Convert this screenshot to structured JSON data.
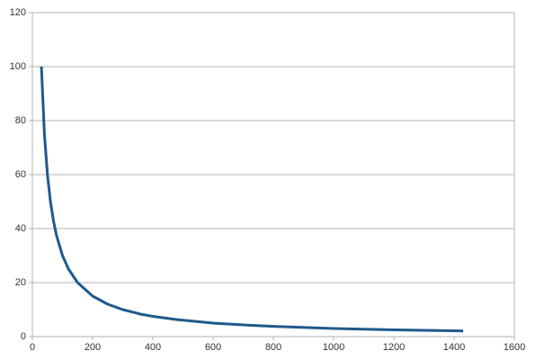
{
  "chart_data": {
    "type": "line",
    "x": [
      30,
      40,
      50,
      60,
      70,
      80,
      100,
      120,
      150,
      200,
      250,
      300,
      360,
      400,
      480,
      600,
      720,
      800,
      1000,
      1200,
      1430
    ],
    "series": [
      {
        "color": "#1f5a8c",
        "values": [
          100,
          75,
          60,
          50,
          42.9,
          37.5,
          30,
          25,
          20,
          15,
          12,
          10,
          8.3,
          7.5,
          6.3,
          5,
          4.2,
          3.8,
          3,
          2.5,
          2.1
        ]
      }
    ],
    "xlim": [
      0,
      1600
    ],
    "xticks": [
      0,
      200,
      400,
      600,
      800,
      1000,
      1200,
      1400,
      1600
    ],
    "ylim": [
      0,
      120
    ],
    "yticks": [
      0,
      20,
      40,
      60,
      80,
      100,
      120
    ],
    "grid": true
  }
}
